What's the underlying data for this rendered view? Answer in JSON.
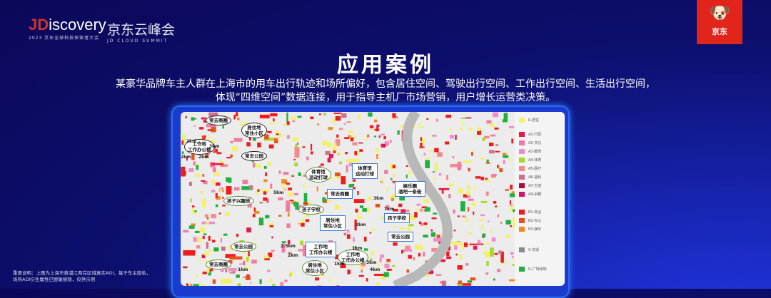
{
  "header": {
    "logo_prefix": "JD",
    "logo_word": "iscovery",
    "logo_sub": "2023 京东全球科技探索者大会",
    "summit_cn": "京东云峰会",
    "summit_en": "JD CLOUD SUMMIT",
    "brand_badge": "京东",
    "brand_color": "#e1251b"
  },
  "title": "应用案例",
  "description": [
    "某豪华品牌车主人群在上海市的用车出行轨迹和场所偏好，包含居住空间、驾驶出行空间、工作出行空间、生活出行空间，",
    "体现“四维空间”数据连接，用于指导主机厂市场营销，用户增长运营类决策。"
  ],
  "map": {
    "callouts": [
      {
        "text": "常去商圈",
        "style": "black"
      },
      {
        "text": "居住地\n常住小区",
        "style": "black"
      },
      {
        "text": "工作地\n工作办公楼",
        "style": "black"
      },
      {
        "text": "常去公园",
        "style": "black"
      },
      {
        "text": "体育馆\n运动打球",
        "style": "green"
      },
      {
        "text": "体育馆\n运动打球",
        "style": "blue"
      },
      {
        "text": "娱乐圈\n酒吧一条街",
        "style": "blue"
      },
      {
        "text": "常去商圈",
        "style": "blue"
      },
      {
        "text": "孩子兴趣班",
        "style": "green"
      },
      {
        "text": "孩子学校",
        "style": "green"
      },
      {
        "text": "居住地\n常住小区",
        "style": "blue"
      },
      {
        "text": "孩子学校",
        "style": "blue"
      },
      {
        "text": "常去公园",
        "style": "blue"
      },
      {
        "text": "工作地\n工作办公楼",
        "style": "blue"
      },
      {
        "text": "常去公园",
        "style": "green"
      },
      {
        "text": "工作地\n工作办公楼",
        "style": "green"
      },
      {
        "text": "常去商圈",
        "style": "green"
      },
      {
        "text": "居住地\n常住小区",
        "style": "green"
      }
    ],
    "distances": [
      "2km",
      "3km",
      "2km",
      "2km",
      "5km",
      "3km",
      "7km",
      "2km",
      "4km",
      "1km",
      "2.5km",
      "2km",
      "1km",
      "3km",
      "1km"
    ],
    "legend": [
      {
        "label": "R-居住",
        "color": "#f5f06a"
      },
      {
        "label": "A1-行政",
        "color": "#e8174a"
      },
      {
        "label": "A2-文化",
        "color": "#f07ca0"
      },
      {
        "label": "A3-教育",
        "color": "#f08cc8"
      },
      {
        "label": "A4-体育",
        "color": "#a6d82a"
      },
      {
        "label": "A5-医疗",
        "color": "#f58a8a"
      },
      {
        "label": "A6-福利",
        "color": "#d0708a"
      },
      {
        "label": "A7-古迹",
        "color": "#a8103a"
      },
      {
        "label": "A9-宗教",
        "color": "#d8106a"
      },
      {
        "label": "B1-商业",
        "color": "#ee1c1c"
      },
      {
        "label": "B2-办公",
        "color": "#e8501c"
      },
      {
        "label": "B3-娱乐",
        "color": "#f28a1c"
      },
      {
        "label": "S-交通",
        "color": "#8a8a8a"
      },
      {
        "label": "G-广场绿地",
        "color": "#20b040"
      }
    ]
  },
  "footnote": "重要说明：上图为上海市黄浦江两岸区域真实AOI，基于车主隐私，\n场所AOI衍生属性已脱敏剔除，仅供示例"
}
